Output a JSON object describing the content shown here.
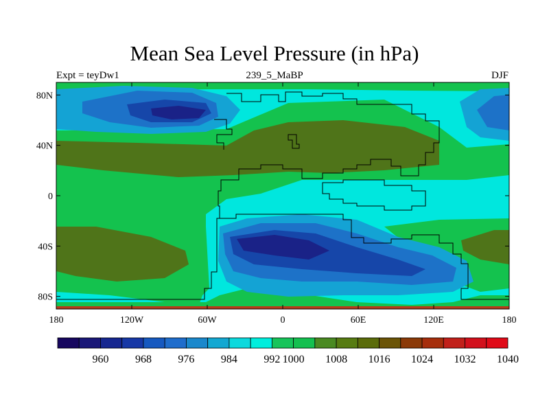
{
  "title": "Mean Sea Level Pressure (in hPa)",
  "subtitle_left": "Expt = teyDw1",
  "subtitle_center": "239_5_MaBP",
  "subtitle_right": "DJF",
  "lat_labels": [
    "80N",
    "40N",
    "0",
    "40S",
    "80S"
  ],
  "lat_values": [
    80,
    40,
    0,
    -40,
    -80
  ],
  "lon_labels": [
    "180",
    "120W",
    "60W",
    "0",
    "60E",
    "120E",
    "180"
  ],
  "lon_values": [
    -180,
    -120,
    -60,
    0,
    60,
    120,
    180
  ],
  "colorbar": {
    "colors": [
      "#17075f",
      "#1a1878",
      "#162790",
      "#1738a6",
      "#1659c0",
      "#1f6dcc",
      "#1a88cc",
      "#13a8d2",
      "#0cd9dd",
      "#00eedd",
      "#17c45a",
      "#14c050",
      "#4a8a22",
      "#577c12",
      "#5b6c0a",
      "#6b5406",
      "#8b3a08",
      "#a62e0c",
      "#c1201a",
      "#d2101c",
      "#e00a18"
    ],
    "labels": [
      "960",
      "968",
      "976",
      "984",
      "992",
      "1000",
      "1008",
      "1016",
      "1024",
      "1032",
      "1040"
    ],
    "label_boundaries": [
      2,
      4,
      6,
      8,
      10,
      11,
      13,
      15,
      17,
      19,
      21
    ]
  },
  "colors": {
    "background": "#00e7de",
    "green": "#14c24e",
    "olive": "#4f7419",
    "blue_light": "#14a3d4",
    "blue_mid": "#1d72c8",
    "blue_deep": "#1646a9",
    "navy": "#1a2287"
  }
}
